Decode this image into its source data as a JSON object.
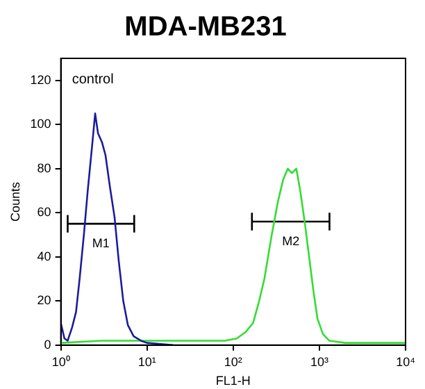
{
  "chart_data": {
    "type": "line",
    "title": "MDA-MB231",
    "xlabel": "FL1-H",
    "ylabel": "Counts",
    "log": "x",
    "grid": false,
    "legend": false,
    "marker": "none",
    "xlim": [
      1,
      10000
    ],
    "xticks": [
      {
        "value": 1,
        "label": "10⁰"
      },
      {
        "value": 10,
        "label": "10¹"
      },
      {
        "value": 100,
        "label": "10²"
      },
      {
        "value": 1000,
        "label": "10³"
      },
      {
        "value": 10000,
        "label": "10⁴"
      }
    ],
    "ylim": [
      0,
      130
    ],
    "yticks": [
      0,
      20,
      40,
      60,
      80,
      100,
      120
    ],
    "annotations": [
      "control"
    ],
    "series": [
      {
        "color": "#1c1c9a",
        "x": [
          1,
          1.1,
          1.2,
          1.35,
          1.5,
          1.65,
          1.85,
          2.05,
          2.3,
          2.5,
          2.7,
          3.0,
          3.3,
          3.7,
          4.2,
          4.7,
          5.3,
          6.0,
          7.0,
          8.5,
          10,
          20
        ],
        "values": [
          10,
          3,
          2,
          8,
          15,
          30,
          50,
          70,
          90,
          105,
          96,
          92,
          86,
          72,
          58,
          38,
          20,
          9,
          4,
          2,
          1,
          0
        ]
      },
      {
        "color": "#33dd33",
        "x": [
          1,
          3,
          10,
          30,
          80,
          110,
          140,
          170,
          200,
          230,
          280,
          330,
          380,
          430,
          480,
          540,
          600,
          680,
          760,
          850,
          950,
          1100,
          1300,
          2000,
          10000
        ],
        "values": [
          1,
          2,
          2,
          2,
          2,
          3,
          6,
          10,
          20,
          30,
          50,
          65,
          75,
          80,
          78,
          80,
          70,
          55,
          40,
          25,
          12,
          5,
          2,
          1,
          1
        ]
      },
      {
        "name": "M1",
        "color": "#000000",
        "x": [
          1.2,
          7.1
        ],
        "values": [
          55,
          55
        ],
        "errors": [
          4,
          4
        ]
      },
      {
        "name": "M2",
        "color": "#000000",
        "x": [
          165,
          1310
        ],
        "values": [
          56,
          56
        ],
        "errors": [
          4,
          4
        ]
      }
    ]
  }
}
